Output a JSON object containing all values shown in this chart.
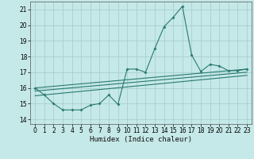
{
  "title": "",
  "xlabel": "Humidex (Indice chaleur)",
  "ylabel": "",
  "background_color": "#c5e8e8",
  "grid_color": "#a8d0d0",
  "line_color": "#2a7a70",
  "xlim": [
    -0.5,
    23.5
  ],
  "ylim": [
    13.7,
    21.5
  ],
  "yticks": [
    14,
    15,
    16,
    17,
    18,
    19,
    20,
    21
  ],
  "xticks": [
    0,
    1,
    2,
    3,
    4,
    5,
    6,
    7,
    8,
    9,
    10,
    11,
    12,
    13,
    14,
    15,
    16,
    17,
    18,
    19,
    20,
    21,
    22,
    23
  ],
  "series_with_markers": {
    "x": [
      0,
      1,
      2,
      3,
      4,
      5,
      6,
      7,
      8,
      9,
      10,
      11,
      12,
      13,
      14,
      15,
      16,
      17,
      18,
      19,
      20,
      21,
      22,
      23
    ],
    "y": [
      16.0,
      15.55,
      15.0,
      14.6,
      14.6,
      14.6,
      14.9,
      15.0,
      15.55,
      14.95,
      17.2,
      17.2,
      17.0,
      18.5,
      19.9,
      20.5,
      21.2,
      18.1,
      17.05,
      17.5,
      17.4,
      17.1,
      17.1,
      17.2
    ]
  },
  "trend_lines": [
    {
      "x": [
        0,
        23
      ],
      "y": [
        16.0,
        17.2
      ]
    },
    {
      "x": [
        0,
        23
      ],
      "y": [
        15.8,
        17.0
      ]
    },
    {
      "x": [
        0,
        23
      ],
      "y": [
        15.5,
        16.8
      ]
    }
  ],
  "figsize": [
    3.2,
    2.0
  ],
  "dpi": 100,
  "tick_fontsize": 5.5,
  "xlabel_fontsize": 6.5
}
